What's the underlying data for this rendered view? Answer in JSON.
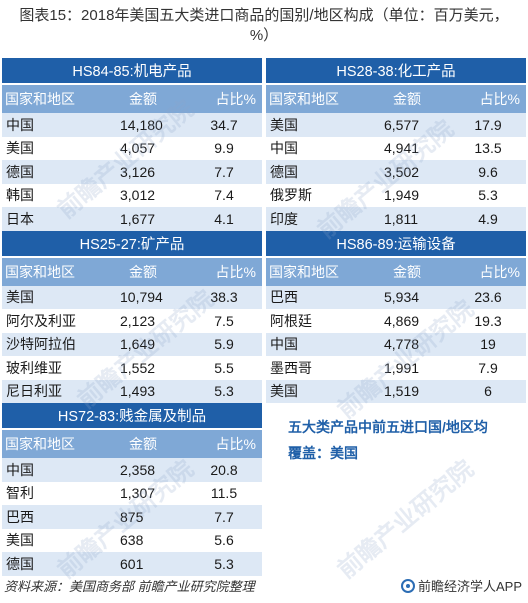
{
  "title": "图表15：2018年美国五大类进口商品的国别/地区构成（单位：百万美元，%）",
  "headers": {
    "region": "国家和地区",
    "amount": "金额",
    "share": "占比%"
  },
  "tables": [
    {
      "section": "HS84-85:机电产品",
      "rows": [
        {
          "country": "中国",
          "amount": "14,180",
          "share": "34.7"
        },
        {
          "country": "美国",
          "amount": "4,057",
          "share": "9.9"
        },
        {
          "country": "德国",
          "amount": "3,126",
          "share": "7.7"
        },
        {
          "country": "韩国",
          "amount": "3,012",
          "share": "7.4"
        },
        {
          "country": "日本",
          "amount": "1,677",
          "share": "4.1"
        }
      ]
    },
    {
      "section": "HS28-38:化工产品",
      "rows": [
        {
          "country": "美国",
          "amount": "6,577",
          "share": "17.9"
        },
        {
          "country": "中国",
          "amount": "4,941",
          "share": "13.5"
        },
        {
          "country": "德国",
          "amount": "3,502",
          "share": "9.6"
        },
        {
          "country": "俄罗斯",
          "amount": "1,949",
          "share": "5.3"
        },
        {
          "country": "印度",
          "amount": "1,811",
          "share": "4.9"
        }
      ]
    },
    {
      "section": "HS25-27:矿产品",
      "rows": [
        {
          "country": "美国",
          "amount": "10,794",
          "share": "38.3"
        },
        {
          "country": "阿尔及利亚",
          "amount": "2,123",
          "share": "7.5"
        },
        {
          "country": "沙特阿拉伯",
          "amount": "1,649",
          "share": "5.9"
        },
        {
          "country": "玻利维亚",
          "amount": "1,552",
          "share": "5.5"
        },
        {
          "country": "尼日利亚",
          "amount": "1,493",
          "share": "5.3"
        }
      ]
    },
    {
      "section": "HS86-89:运输设备",
      "rows": [
        {
          "country": "巴西",
          "amount": "5,934",
          "share": "23.6"
        },
        {
          "country": "阿根廷",
          "amount": "4,869",
          "share": "19.3"
        },
        {
          "country": "中国",
          "amount": "4,778",
          "share": "19"
        },
        {
          "country": "墨西哥",
          "amount": "1,991",
          "share": "7.9"
        },
        {
          "country": "美国",
          "amount": "1,519",
          "share": "6"
        }
      ]
    },
    {
      "section": "HS72-83:贱金属及制品",
      "rows": [
        {
          "country": "中国",
          "amount": "2,358",
          "share": "20.8"
        },
        {
          "country": "智利",
          "amount": "1,307",
          "share": "11.5"
        },
        {
          "country": "巴西",
          "amount": "875",
          "share": "7.7"
        },
        {
          "country": "美国",
          "amount": "638",
          "share": "5.6"
        },
        {
          "country": "德国",
          "amount": "601",
          "share": "5.3"
        }
      ]
    }
  ],
  "note": "五大类产品中前五进口国/地区均覆盖：美国",
  "source": "资料来源：美国商务部 前瞻产业研究院整理",
  "brand": "前瞻经济学人APP",
  "watermark": "前瞻产业研究院",
  "colors": {
    "section_bg": "#1f5fa8",
    "header_bg": "#7fa8d6",
    "row_alt_bg": "#dde8f5",
    "note_text": "#1f5fa8"
  }
}
